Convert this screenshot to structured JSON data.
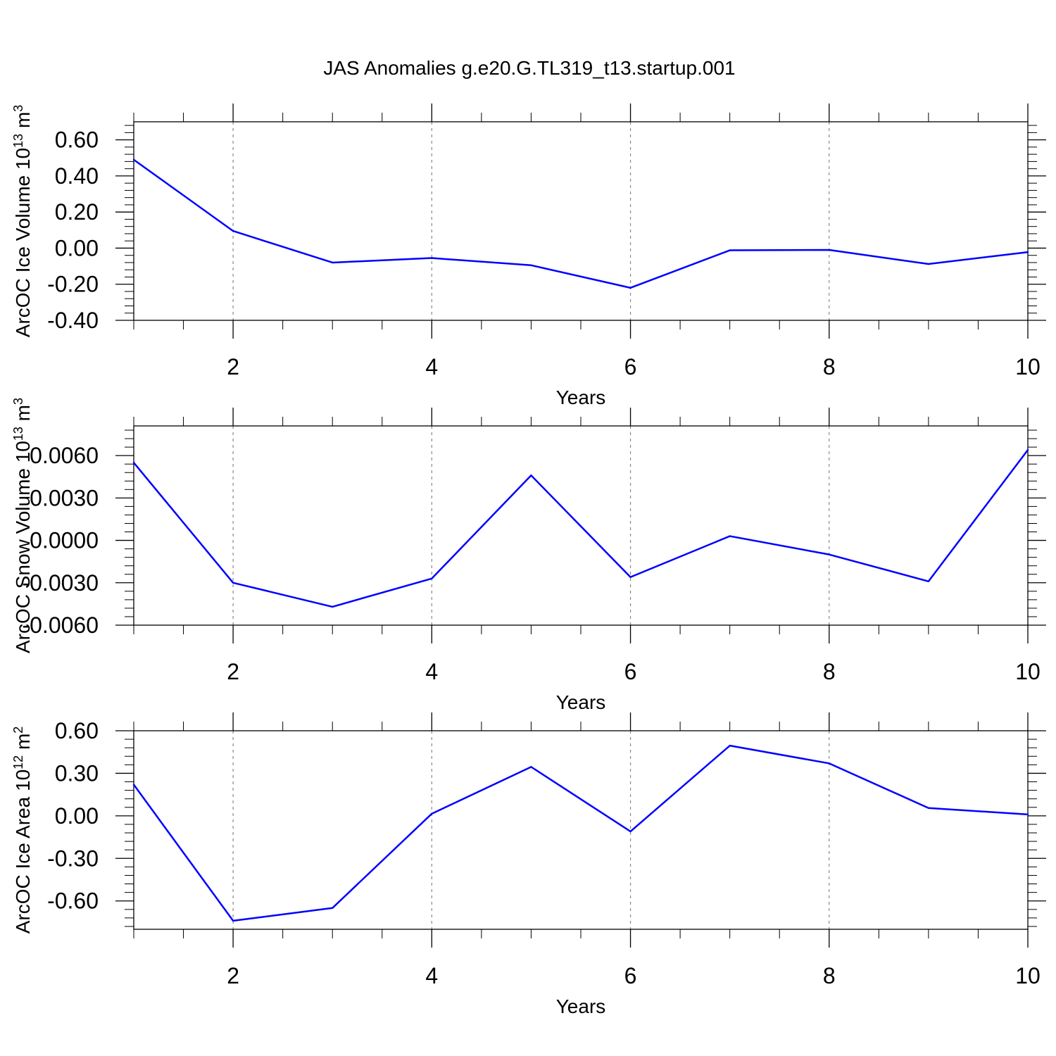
{
  "title": "JAS Anomalies g.e20.G.TL319_t13.startup.001",
  "line_color": "#0000ff",
  "chart_data": [
    {
      "type": "line",
      "ylabel": "ArcOC Ice Volume 10",
      "ylabel_sup": "13",
      "ylabel_unit": " m",
      "ylabel_unit_sup": "3",
      "xlabel": "Years",
      "xlim": [
        1,
        10
      ],
      "ylim": [
        -0.4,
        0.7
      ],
      "xticks": [
        2,
        4,
        6,
        8,
        10
      ],
      "xticklabels": [
        "2",
        "4",
        "6",
        "8",
        "10"
      ],
      "yticks": [
        -0.4,
        -0.2,
        0.0,
        0.2,
        0.4,
        0.6
      ],
      "yticklabels": [
        "-0.40",
        "-0.20",
        "0.00",
        "0.20",
        "0.40",
        "0.60"
      ],
      "grid": "dashed vertical at major x ticks",
      "x": [
        1,
        2,
        3,
        4,
        5,
        6,
        7,
        8,
        9,
        10
      ],
      "y": [
        0.49,
        0.095,
        -0.08,
        -0.055,
        -0.095,
        -0.22,
        -0.012,
        -0.01,
        -0.088,
        -0.022
      ]
    },
    {
      "type": "line",
      "ylabel": "ArcOC Snow Volume 10",
      "ylabel_sup": "13",
      "ylabel_unit": " m",
      "ylabel_unit_sup": "3",
      "xlabel": "Years",
      "xlim": [
        1,
        10
      ],
      "ylim": [
        -0.006,
        0.0081
      ],
      "xticks": [
        2,
        4,
        6,
        8,
        10
      ],
      "xticklabels": [
        "2",
        "4",
        "6",
        "8",
        "10"
      ],
      "yticks": [
        -0.006,
        -0.003,
        0.0,
        0.003,
        0.006
      ],
      "yticklabels": [
        "-0.0060",
        "-0.0030",
        "0.0000",
        "0.0030",
        "0.0060"
      ],
      "grid": "dashed vertical at major x ticks",
      "x": [
        1,
        2,
        3,
        4,
        5,
        6,
        7,
        8,
        9,
        10
      ],
      "y": [
        0.0055,
        -0.003,
        -0.0047,
        -0.0027,
        0.0046,
        -0.0026,
        0.0003,
        -0.001,
        -0.0029,
        0.0064
      ]
    },
    {
      "type": "line",
      "ylabel": "ArcOC Ice Area 10",
      "ylabel_sup": "12",
      "ylabel_unit": " m",
      "ylabel_unit_sup": "2",
      "xlabel": "Years",
      "xlim": [
        1,
        10
      ],
      "ylim": [
        -0.8,
        0.6
      ],
      "xticks": [
        2,
        4,
        6,
        8,
        10
      ],
      "xticklabels": [
        "2",
        "4",
        "6",
        "8",
        "10"
      ],
      "yticks": [
        -0.6,
        -0.3,
        0.0,
        0.3,
        0.6
      ],
      "yticklabels": [
        "-0.60",
        "-0.30",
        "0.00",
        "0.30",
        "0.60"
      ],
      "grid": "dashed vertical at major x ticks",
      "x": [
        1,
        2,
        3,
        4,
        5,
        6,
        7,
        8,
        9,
        10
      ],
      "y": [
        0.22,
        -0.74,
        -0.65,
        0.015,
        0.345,
        -0.11,
        0.495,
        0.37,
        0.055,
        0.01
      ]
    }
  ]
}
